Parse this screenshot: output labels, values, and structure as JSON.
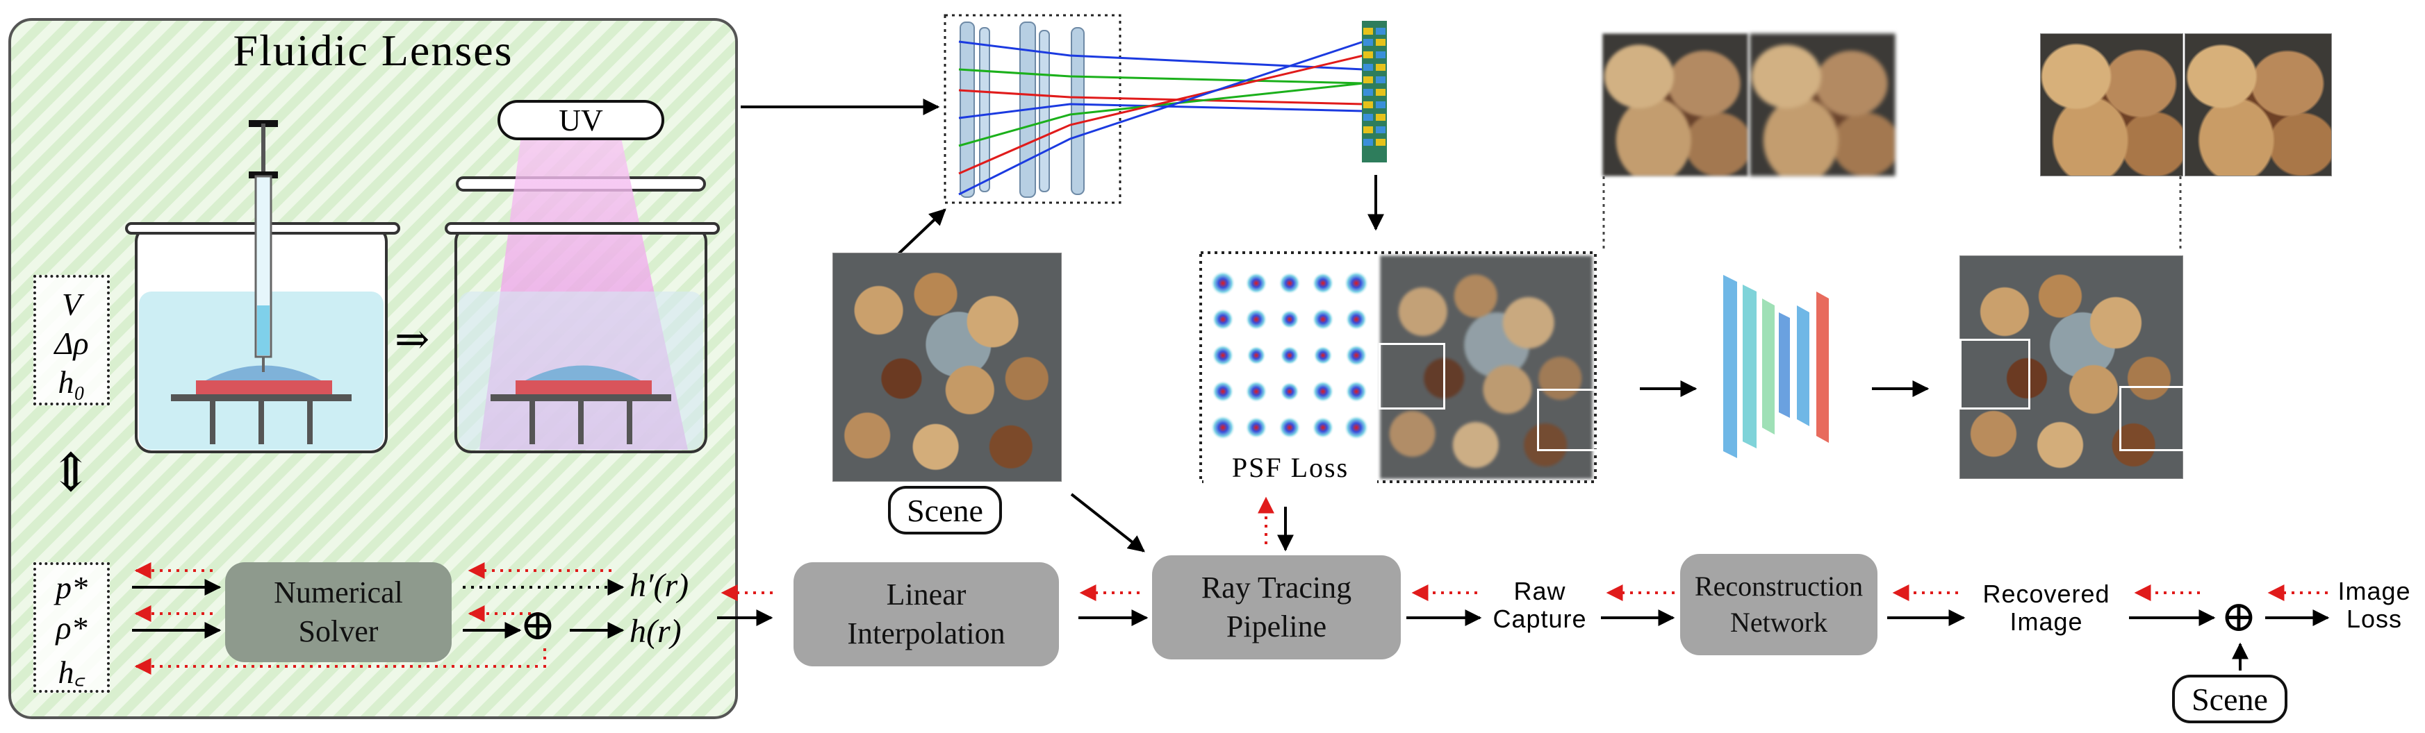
{
  "fluidic_lenses": {
    "title": "Fluidic Lenses",
    "uv_label": "UV",
    "implies_symbol": "⇒",
    "bidirectional_symbol": "⇕",
    "design_params": [
      "V",
      "Δρ",
      "h₀"
    ],
    "solver_inputs": [
      "p*",
      "ρ*",
      "h꜀"
    ],
    "solver_label_line1": "Numerical",
    "solver_label_line2": "Solver",
    "target_profile": "h′(r)",
    "profile": "h(r)",
    "sum_symbol": "⊕"
  },
  "pipeline": {
    "linear_interp_line1": "Linear",
    "linear_interp_line2": "Interpolation",
    "ray_tracing_line1": "Ray Tracing",
    "ray_tracing_line2": "Pipeline",
    "raw_capture_line1": "Raw",
    "raw_capture_line2": "Capture",
    "recon_line1": "Reconstruction",
    "recon_line2": "Network",
    "recovered_line1": "Recovered",
    "recovered_line2": "Image",
    "loss_sum_symbol": "⊕",
    "image_loss_line1": "Image",
    "image_loss_line2": "Loss",
    "scene_label": "Scene",
    "scene_label_bottom": "Scene",
    "psf_loss_label": "PSF Loss"
  },
  "colors": {
    "panel_border": "#555555",
    "panel_fill": "#d9efcf",
    "box_fill": "#a5a5a5",
    "solver_fill": "#8e9a8d",
    "forward_arrow": "#000000",
    "backward_arrow": "#e01b1b",
    "uv_beam": "#f2a8ee",
    "liquid": "#bfe6f0",
    "lens_blue": "#7fb2d9",
    "lens_red": "#d9545b",
    "ray_red": "#e01b1b",
    "ray_green": "#1bb01b",
    "ray_blue": "#1b3ae0"
  },
  "icons": [
    "syringe-icon",
    "uv-lamp-icon",
    "tank-icon",
    "lens-stack-icon",
    "sensor-icon",
    "network-icon"
  ]
}
